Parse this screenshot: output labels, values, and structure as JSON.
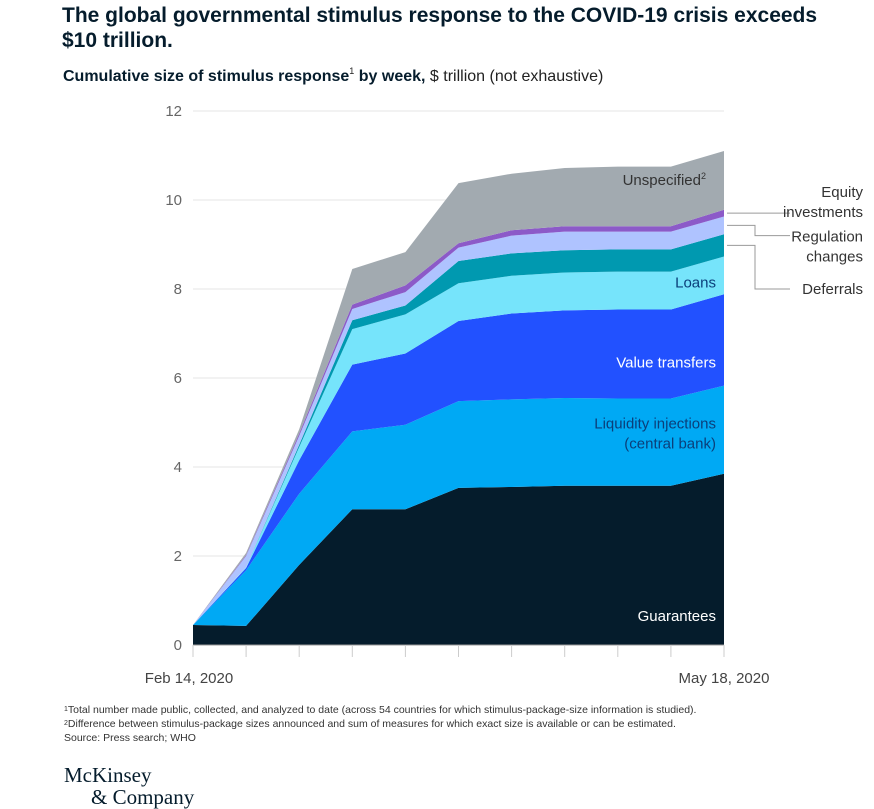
{
  "title": "The global governmental stimulus response to the COVID-19 crisis exceeds $10 trillion.",
  "subtitle": {
    "bold": "Cumulative size of stimulus response",
    "sup": "1",
    "bold_suffix": " by week,",
    "rest": " $ trillion (not exhaustive)"
  },
  "chart_data": {
    "type": "area",
    "stacked": true,
    "title": "Cumulative size of stimulus response by week",
    "ylabel": "$ trillion",
    "xlabel": "",
    "ylim": [
      0,
      12
    ],
    "y_ticks": [
      0,
      2,
      4,
      6,
      8,
      10,
      12
    ],
    "x_tick_labels": [
      "Feb 14, 2020",
      "May 18, 2020"
    ],
    "x": [
      0,
      1,
      2,
      3,
      4,
      5,
      6,
      7,
      8,
      9,
      10
    ],
    "series": [
      {
        "name": "Guarantees",
        "label_lines": [
          "Guarantees"
        ],
        "color": "#051c2c",
        "label_color": "#ffffff",
        "values": [
          0.45,
          0.43,
          1.8,
          3.05,
          3.05,
          3.53,
          3.55,
          3.58,
          3.58,
          3.58,
          3.85
        ]
      },
      {
        "name": "Liquidity injections (central bank)",
        "label_lines": [
          "Liquidity injections",
          "(central bank)"
        ],
        "color": "#00a9f4",
        "label_color": "#0b3f7a",
        "values": [
          0.0,
          1.25,
          1.6,
          1.75,
          1.9,
          1.95,
          1.97,
          1.97,
          1.96,
          1.96,
          1.98
        ]
      },
      {
        "name": "Value transfers",
        "label_lines": [
          "Value transfers"
        ],
        "color": "#2251ff",
        "label_color": "#ffffff",
        "values": [
          0.0,
          0.05,
          0.75,
          1.5,
          1.6,
          1.8,
          1.93,
          1.97,
          2.0,
          2.0,
          2.05
        ]
      },
      {
        "name": "Loans",
        "label_lines": [
          "Loans"
        ],
        "color": "#76e4fb",
        "label_color": "#0b3f7a",
        "values": [
          0.0,
          0.02,
          0.3,
          0.8,
          0.88,
          0.85,
          0.85,
          0.85,
          0.85,
          0.85,
          0.85
        ]
      },
      {
        "name": "Deferrals",
        "label_lines": [
          "Deferrals"
        ],
        "color": "#0099b0",
        "label_color": "#333333",
        "values": [
          0.0,
          0.0,
          0.05,
          0.2,
          0.2,
          0.5,
          0.5,
          0.5,
          0.5,
          0.5,
          0.5
        ]
      },
      {
        "name": "Regulation changes",
        "label_lines": [
          "Regulation",
          "changes"
        ],
        "color": "#afc3ff",
        "label_color": "#333333",
        "values": [
          0.0,
          0.25,
          0.2,
          0.25,
          0.3,
          0.3,
          0.4,
          0.42,
          0.4,
          0.4,
          0.4
        ]
      },
      {
        "name": "Equity investments",
        "label_lines": [
          "Equity",
          "investments"
        ],
        "color": "#8c5ac8",
        "label_color": "#333333",
        "values": [
          0.0,
          0.02,
          0.05,
          0.1,
          0.15,
          0.1,
          0.12,
          0.12,
          0.12,
          0.12,
          0.15
        ]
      },
      {
        "name": "Unspecified",
        "label_lines": [
          "Unspecified"
        ],
        "label_sup": "2",
        "color": "#a2aab0",
        "label_color": "#333333",
        "values": [
          0.0,
          0.05,
          0.1,
          0.8,
          0.75,
          1.35,
          1.27,
          1.31,
          1.34,
          1.34,
          1.32
        ]
      }
    ]
  },
  "footnotes": [
    {
      "sup": "1",
      "text": "Total number made public, collected, and analyzed to date (across 54 countries for which stimulus-package-size information is studied)."
    },
    {
      "sup": "2",
      "text": "Difference between stimulus-package sizes announced and sum of measures for which exact size is available or can be estimated."
    },
    {
      "sup": "",
      "text": "Source: Press search; WHO"
    }
  ],
  "logo": {
    "line1": "McKinsey",
    "line2": "& Company"
  }
}
